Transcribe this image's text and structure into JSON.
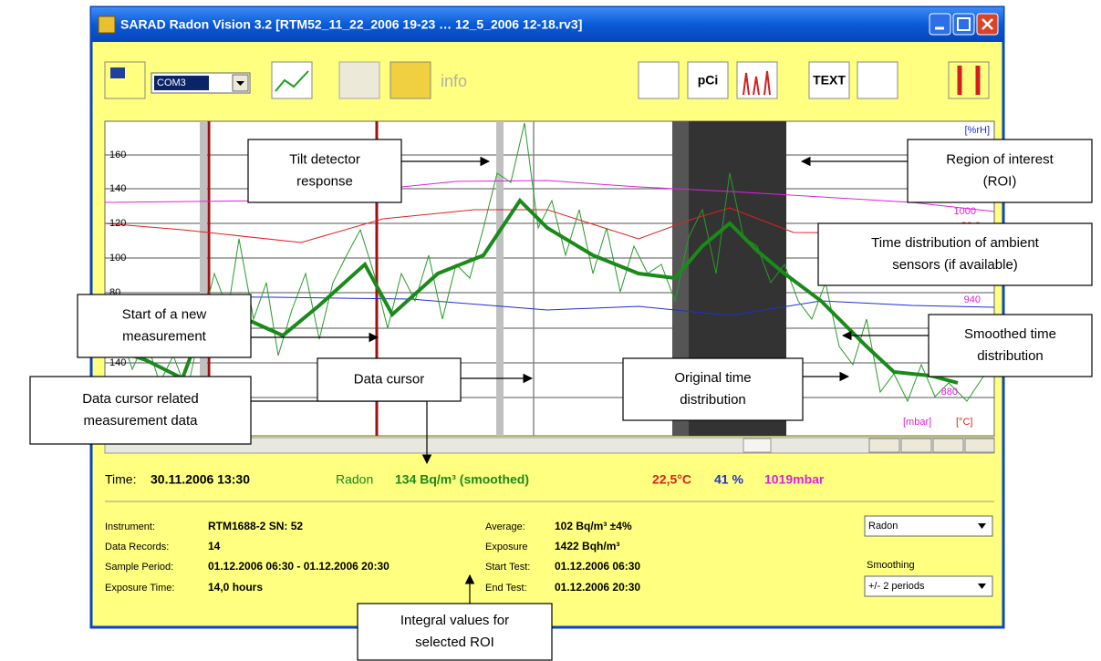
{
  "window": {
    "title": "SARAD Radon Vision 3.2 [RTM52_11_22_2006 19-23 … 12_5_2006 12-18.rv3]",
    "com_port": "COM3",
    "info": "info",
    "pci": "pCi",
    "text": "TEXT"
  },
  "plot": {
    "left_labels": [
      "160",
      "140",
      "120",
      "100",
      "80",
      "140"
    ],
    "right_unit": "[%rH]",
    "right_labels": [
      "1000",
      "30.0",
      "940",
      "880"
    ],
    "bottom_units": [
      "[mbar]",
      "[°C]"
    ]
  },
  "status": {
    "time_label": "Time:",
    "time": "30.11.2006 13:30",
    "radon_label": "Radon",
    "radon": "134 Bq/m³ (smoothed)",
    "temperature": "22,5°C",
    "humidity": "41 %",
    "pressure": "1019mbar"
  },
  "info": {
    "left_rows": [
      [
        "Instrument:",
        "RTM1688-2 SN: 52"
      ],
      [
        "Data Records:",
        "14"
      ],
      [
        "Sample Period:",
        "01.12.2006 06:30 - 01.12.2006 20:30"
      ],
      [
        "Exposure Time:",
        "14,0 hours"
      ]
    ],
    "right_rows": [
      [
        "Average:",
        "102 Bq/m³ ±4%"
      ],
      [
        "Exposure",
        "1422 Bqh/m³"
      ],
      [
        "Start Test:",
        "01.12.2006 06:30"
      ],
      [
        "End Test:",
        "01.12.2006 20:30"
      ]
    ],
    "parameter": "Radon",
    "smoothing_label": "Smoothing",
    "smoothing": "+/- 2 periods"
  },
  "callouts": [
    {
      "lines": [
        "Tilt detector",
        "response"
      ]
    },
    {
      "lines": [
        "Region of interest",
        "(ROI)"
      ]
    },
    {
      "lines": [
        "Time distribution of ambient",
        "sensors (if available)"
      ]
    },
    {
      "lines": [
        "Start of a new",
        "measurement"
      ]
    },
    {
      "lines": [
        "Smoothed time",
        "distribution"
      ]
    },
    {
      "lines": [
        "Data cursor"
      ]
    },
    {
      "lines": [
        "Original time",
        "distribution"
      ]
    },
    {
      "lines": [
        "Data cursor related",
        "measurement data"
      ]
    },
    {
      "lines": [
        "Integral values for",
        "selected ROI"
      ]
    }
  ]
}
